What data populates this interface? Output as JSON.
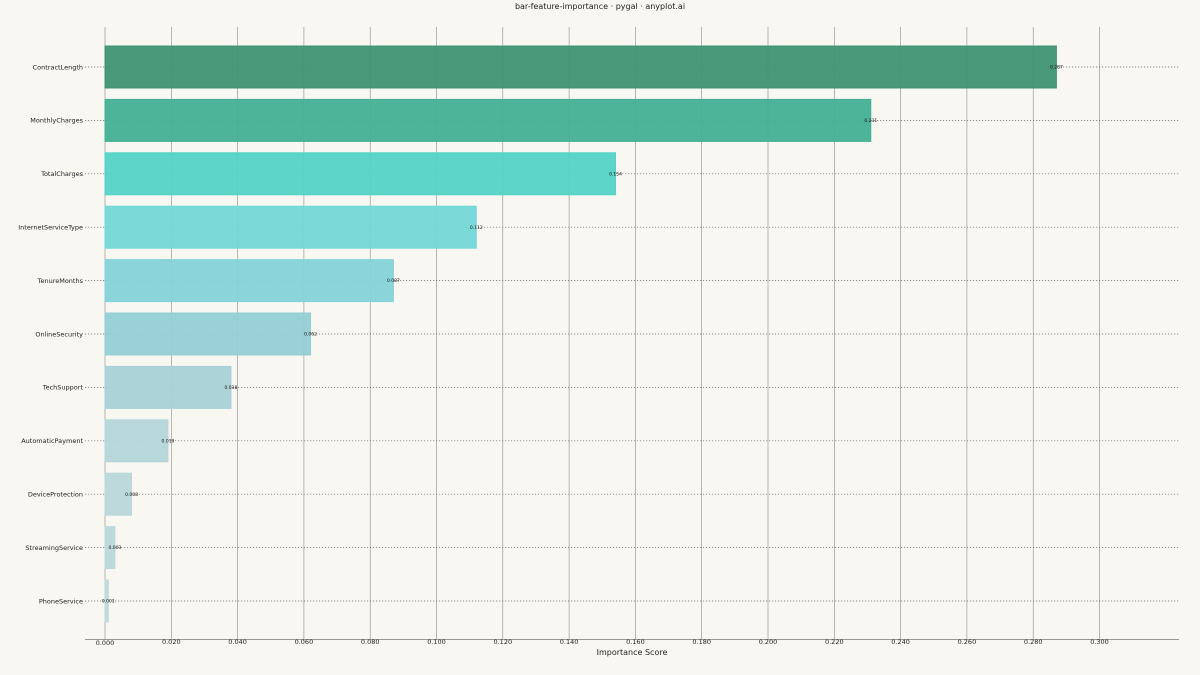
{
  "chart_data": {
    "type": "bar",
    "orientation": "horizontal",
    "title": "bar-feature-importance · pygal · anyplot.ai",
    "xlabel": "Importance Score",
    "ylabel": "",
    "xlim": [
      0,
      0.3
    ],
    "grid": true,
    "legend": "none",
    "categories": [
      "ContractLength",
      "MonthlyCharges",
      "TotalCharges",
      "InternetServiceType",
      "TenureMonths",
      "OnlineSecurity",
      "TechSupport",
      "AutomaticPayment",
      "DeviceProtection",
      "StreamingService",
      "PhoneService"
    ],
    "values": [
      0.287,
      0.231,
      0.154,
      0.112,
      0.087,
      0.062,
      0.038,
      0.019,
      0.008,
      0.003,
      0.001
    ],
    "value_labels": [
      "0.287",
      "0.231",
      "0.154",
      "0.112",
      "0.087",
      "0.062",
      "0.038",
      "0.019",
      "0.008",
      "0.003",
      "0.001"
    ],
    "ticks": [
      "0.000",
      "0.020",
      "0.040",
      "0.060",
      "0.080",
      "0.100",
      "0.120",
      "0.140",
      "0.160",
      "0.180",
      "0.200",
      "0.220",
      "0.240",
      "0.260",
      "0.280",
      "0.300"
    ],
    "colors": [
      "#3f9474",
      "#45b094",
      "#55d3c6",
      "#72d8d6",
      "#85d2d8",
      "#94cfd4",
      "#a6d1d6",
      "#b4d6da",
      "#b9d7da",
      "#bcd8db",
      "#bfd9dc"
    ],
    "background": "#f9f7f2"
  }
}
